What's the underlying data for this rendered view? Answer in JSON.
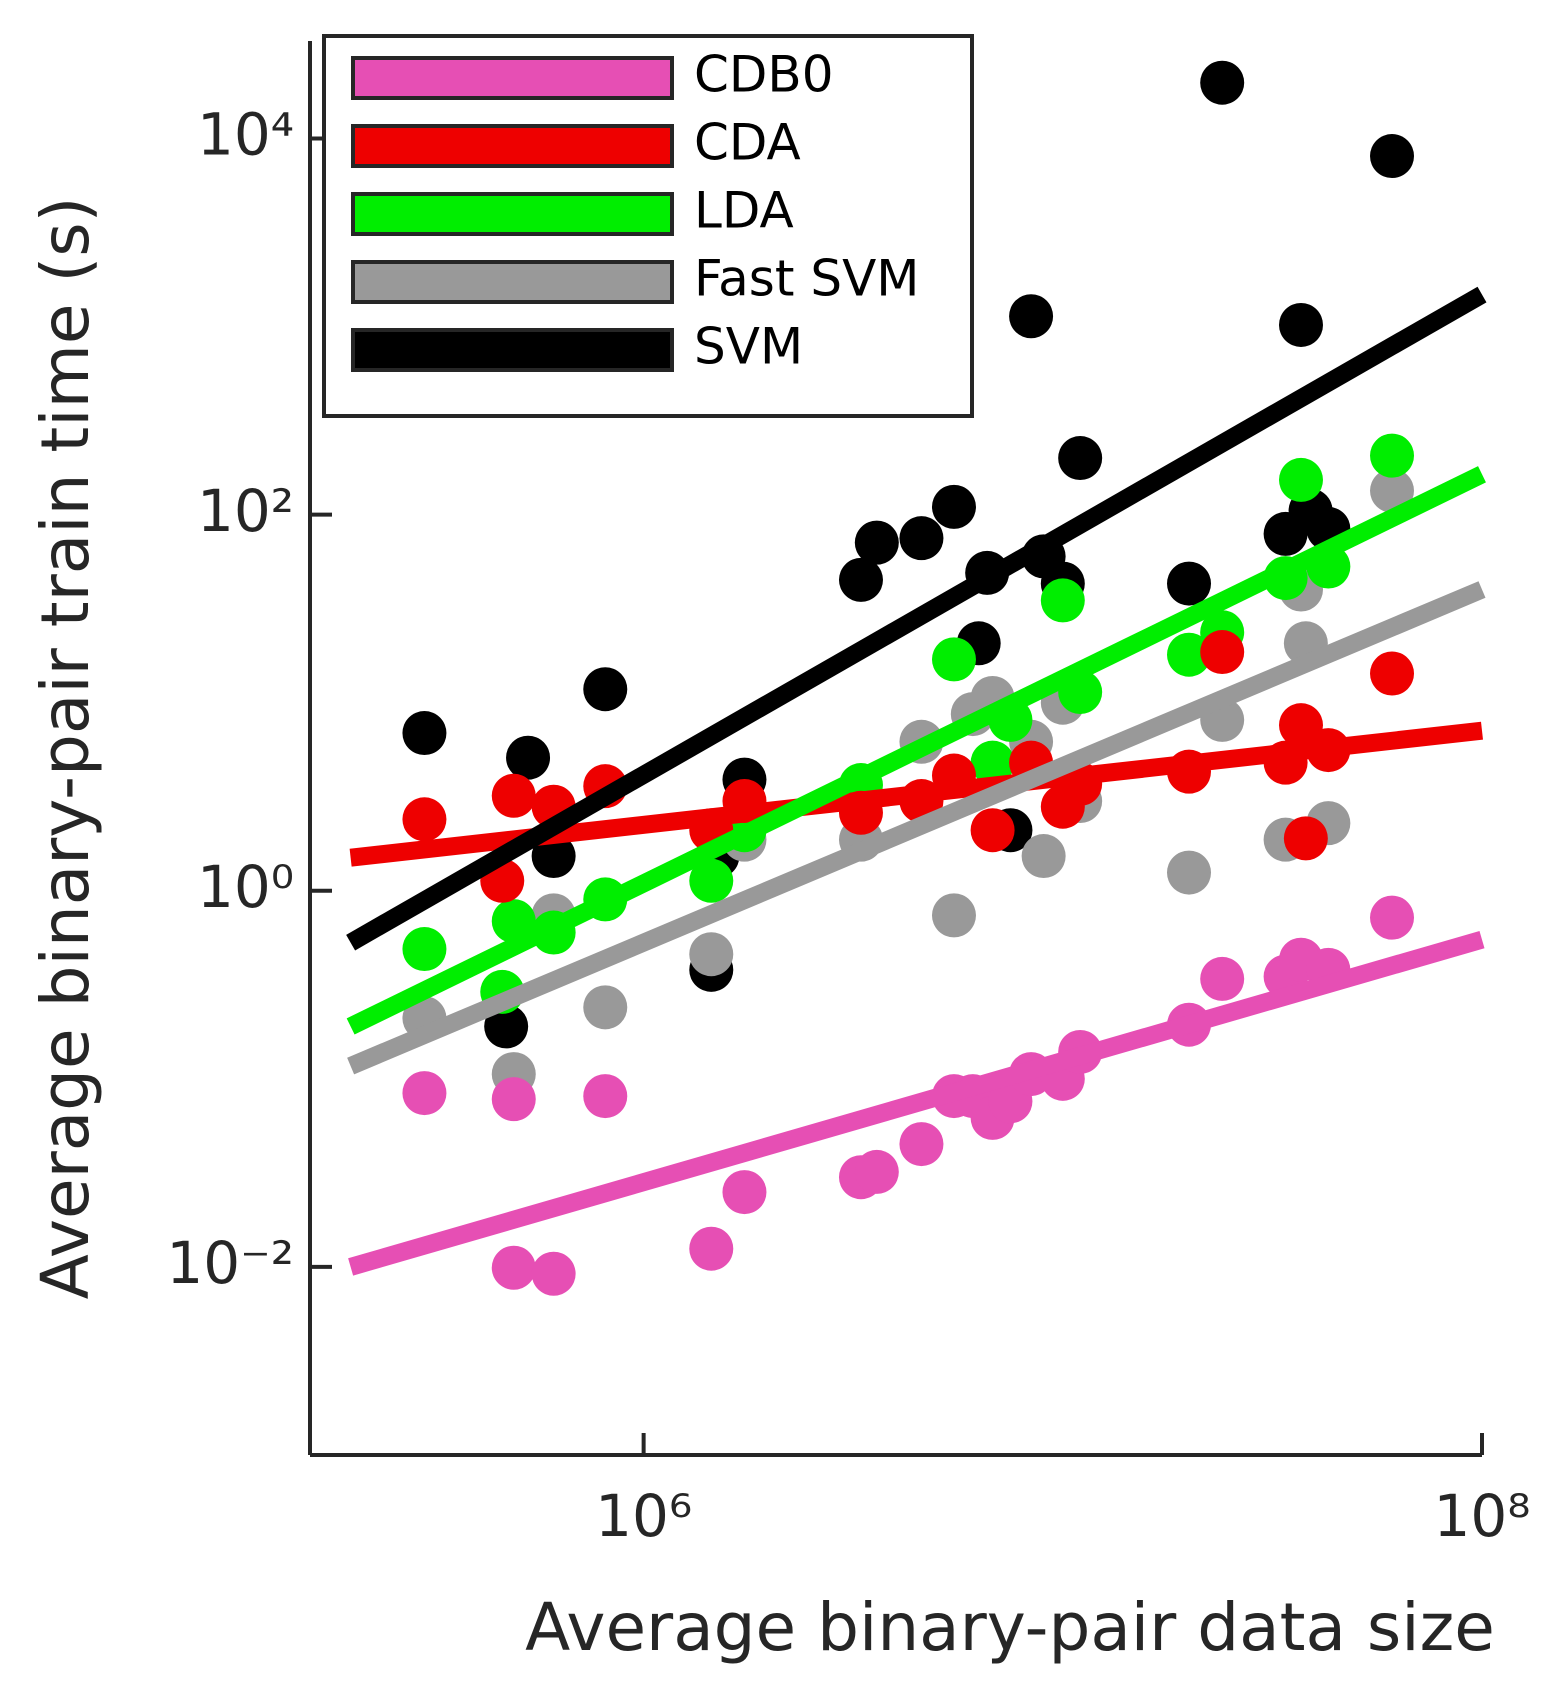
{
  "chart_data": {
    "type": "scatter",
    "x_label": "Average binary-pair data size",
    "y_label": "Average binary-pair train time (s)",
    "xscale": "log",
    "yscale": "log",
    "xlim": [
      160000,
      100000000
    ],
    "ylim": [
      0.001,
      33000
    ],
    "xticks": [
      {
        "value": 1000000,
        "label": "10⁶"
      },
      {
        "value": 100000000,
        "label": "10⁸"
      }
    ],
    "yticks": [
      {
        "value": 0.01,
        "label": "10⁻²"
      },
      {
        "value": 1,
        "label": "10⁰"
      },
      {
        "value": 100,
        "label": "10²"
      },
      {
        "value": 10000,
        "label": "10⁴"
      }
    ],
    "grid": false,
    "legend": "upper left",
    "series": [
      {
        "name": "CDB0",
        "color": "#e64fb4",
        "x": [
          300000,
          490000,
          490000,
          610000,
          810000,
          1450000,
          1740000,
          3300000,
          3600000,
          4600000,
          5500000,
          6100000,
          6800000,
          7500000,
          8400000,
          10000000,
          11000000,
          20000000,
          24000000,
          34000000,
          37000000,
          43000000,
          61000000
        ],
        "values": [
          0.084,
          0.078,
          0.0099,
          0.0092,
          0.081,
          0.0125,
          0.025,
          0.03,
          0.032,
          0.045,
          0.081,
          0.081,
          0.062,
          0.076,
          0.106,
          0.1,
          0.139,
          0.194,
          0.34,
          0.35,
          0.43,
          0.38,
          0.72
        ],
        "fit": {
          "x": [
            200000,
            100000000
          ],
          "values": [
            0.01,
            0.55
          ]
        }
      },
      {
        "name": "CDA",
        "color": "#ee0000",
        "x": [
          300000,
          490000,
          460000,
          610000,
          810000,
          1450000,
          1740000,
          3300000,
          4600000,
          5500000,
          6800000,
          8400000,
          10000000,
          11000000,
          20000000,
          24000000,
          34000000,
          37000000,
          38000000,
          43000000,
          61000000
        ],
        "values": [
          2.4,
          3.2,
          1.13,
          2.8,
          3.6,
          2.1,
          3.0,
          2.6,
          3.0,
          4.1,
          2.1,
          4.8,
          2.8,
          3.7,
          4.3,
          18.6,
          4.8,
          7.6,
          1.9,
          5.6,
          14.3
        ],
        "fit": {
          "x": [
            200000,
            100000000
          ],
          "values": [
            1.5,
            7.1
          ]
        }
      },
      {
        "name": "LDA",
        "color": "#00ee00",
        "x": [
          300000,
          460000,
          490000,
          610000,
          810000,
          1450000,
          1740000,
          3300000,
          5500000,
          6800000,
          7500000,
          10000000,
          11000000,
          20000000,
          24000000,
          34000000,
          37000000,
          43000000,
          61000000
        ],
        "values": [
          0.49,
          0.29,
          0.69,
          0.6,
          0.9,
          1.13,
          2.1,
          3.65,
          17,
          4.8,
          8.1,
          35,
          11.4,
          18,
          23.7,
          46,
          153,
          53,
          206
        ],
        "fit": {
          "x": [
            200000,
            100000000
          ],
          "values": [
            0.19,
            164
          ]
        }
      },
      {
        "name": "Fast SVM",
        "color": "#999999",
        "x": [
          300000,
          490000,
          610000,
          810000,
          1450000,
          1740000,
          3300000,
          4600000,
          5500000,
          6100000,
          6800000,
          8400000,
          9000000,
          10000000,
          11000000,
          20000000,
          24000000,
          34000000,
          37000000,
          38000000,
          43000000,
          61000000
        ],
        "values": [
          0.21,
          0.106,
          0.74,
          0.24,
          0.46,
          1.87,
          1.87,
          6.2,
          0.74,
          8.7,
          10.6,
          6.2,
          1.53,
          10,
          3.0,
          1.25,
          8.1,
          1.87,
          40,
          20.7,
          2.29,
          134
        ],
        "fit": {
          "x": [
            200000,
            100000000
          ],
          "values": [
            0.117,
            40
          ]
        }
      },
      {
        "name": "SVM",
        "color": "#000000",
        "x": [
          300000,
          470000,
          530000,
          610000,
          810000,
          1450000,
          1500000,
          1740000,
          3300000,
          3600000,
          4600000,
          5500000,
          6300000,
          6600000,
          7500000,
          8400000,
          9000000,
          10000000,
          11000000,
          20000000,
          24000000,
          34000000,
          37000000,
          39000000,
          43000000,
          61000000
        ],
        "values": [
          6.9,
          0.19,
          5.1,
          1.53,
          11.8,
          0.38,
          1.53,
          3.9,
          45,
          71,
          75,
          110,
          20.7,
          49,
          2.1,
          1135,
          60,
          43,
          200,
          43,
          19800,
          79,
          1020,
          105,
          84,
          8070
        ],
        "fit": {
          "x": [
            200000,
            100000000
          ],
          "values": [
            0.53,
            1480
          ]
        }
      }
    ]
  }
}
